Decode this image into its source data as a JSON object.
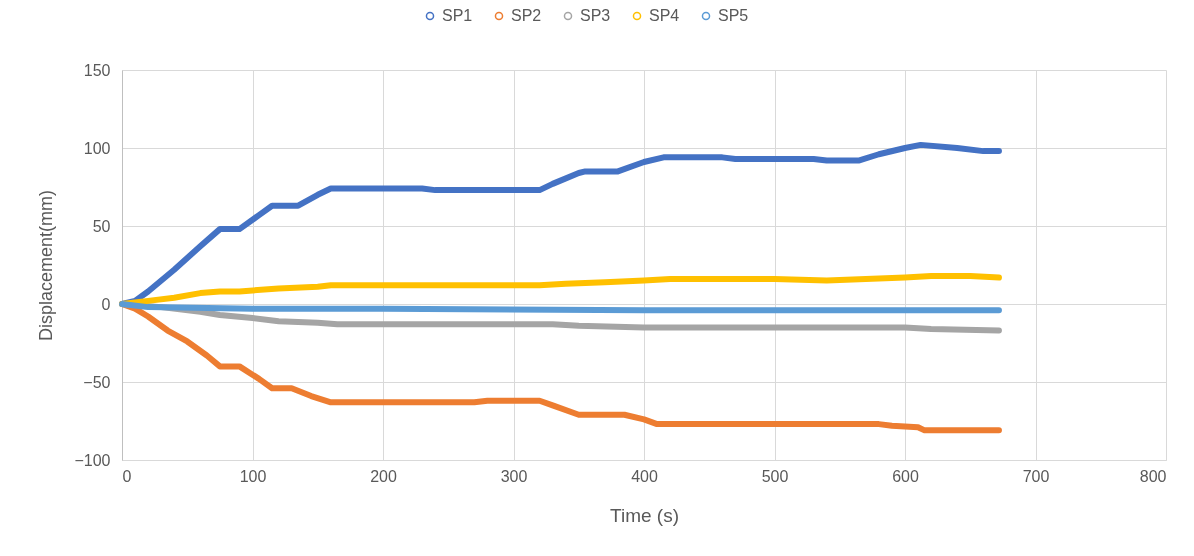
{
  "chart_data": {
    "type": "line",
    "xlabel": "Time (s)",
    "ylabel": "Displacement(mm)",
    "xlim": [
      0,
      800
    ],
    "xticks": [
      0,
      100,
      200,
      300,
      400,
      500,
      600,
      700,
      800
    ],
    "ylim": [
      -100,
      150
    ],
    "yticks": [
      -100,
      -50,
      0,
      50,
      100,
      150
    ],
    "grid": true,
    "legend": "top",
    "line_style": "solid",
    "series": [
      {
        "name": "SP1",
        "color": "#4472c4",
        "x": [
          0,
          10,
          20,
          40,
          60,
          75,
          90,
          105,
          115,
          135,
          150,
          160,
          230,
          240,
          290,
          320,
          330,
          350,
          355,
          380,
          400,
          415,
          460,
          470,
          530,
          540,
          565,
          580,
          600,
          612,
          640,
          660,
          672
        ],
        "values": [
          0,
          2,
          8,
          22,
          37,
          48,
          48,
          57,
          63,
          63,
          70,
          74,
          74,
          73,
          73,
          73,
          77,
          84,
          85,
          85,
          91,
          94,
          94,
          93,
          93,
          92,
          92,
          96,
          100,
          102,
          100,
          98,
          98
        ]
      },
      {
        "name": "SP2",
        "color": "#ed7d31",
        "x": [
          0,
          10,
          20,
          35,
          50,
          65,
          75,
          90,
          105,
          115,
          130,
          145,
          160,
          270,
          280,
          320,
          330,
          350,
          385,
          400,
          410,
          580,
          590,
          610,
          615,
          672
        ],
        "values": [
          0,
          -3,
          -8,
          -17,
          -24,
          -33,
          -40,
          -40,
          -48,
          -54,
          -54,
          -59,
          -63,
          -63,
          -62,
          -62,
          -65,
          -71,
          -71,
          -74,
          -77,
          -77,
          -78,
          -79,
          -81,
          -81
        ]
      },
      {
        "name": "SP3",
        "color": "#a5a5a5",
        "x": [
          0,
          30,
          60,
          75,
          100,
          120,
          150,
          165,
          330,
          350,
          400,
          600,
          620,
          672
        ],
        "values": [
          0,
          -2,
          -5,
          -7,
          -9,
          -11,
          -12,
          -13,
          -13,
          -14,
          -15,
          -15,
          -16,
          -17
        ]
      },
      {
        "name": "SP4",
        "color": "#ffc000",
        "x": [
          0,
          20,
          40,
          60,
          75,
          90,
          120,
          150,
          160,
          320,
          340,
          370,
          400,
          420,
          500,
          540,
          570,
          600,
          620,
          650,
          672
        ],
        "values": [
          0,
          2,
          4,
          7,
          8,
          8,
          10,
          11,
          12,
          12,
          13,
          14,
          15,
          16,
          16,
          15,
          16,
          17,
          18,
          18,
          17
        ]
      },
      {
        "name": "SP5",
        "color": "#5b9bd5",
        "x": [
          0,
          20,
          100,
          200,
          400,
          672
        ],
        "values": [
          0,
          -2,
          -3,
          -3,
          -4,
          -4
        ]
      }
    ]
  }
}
